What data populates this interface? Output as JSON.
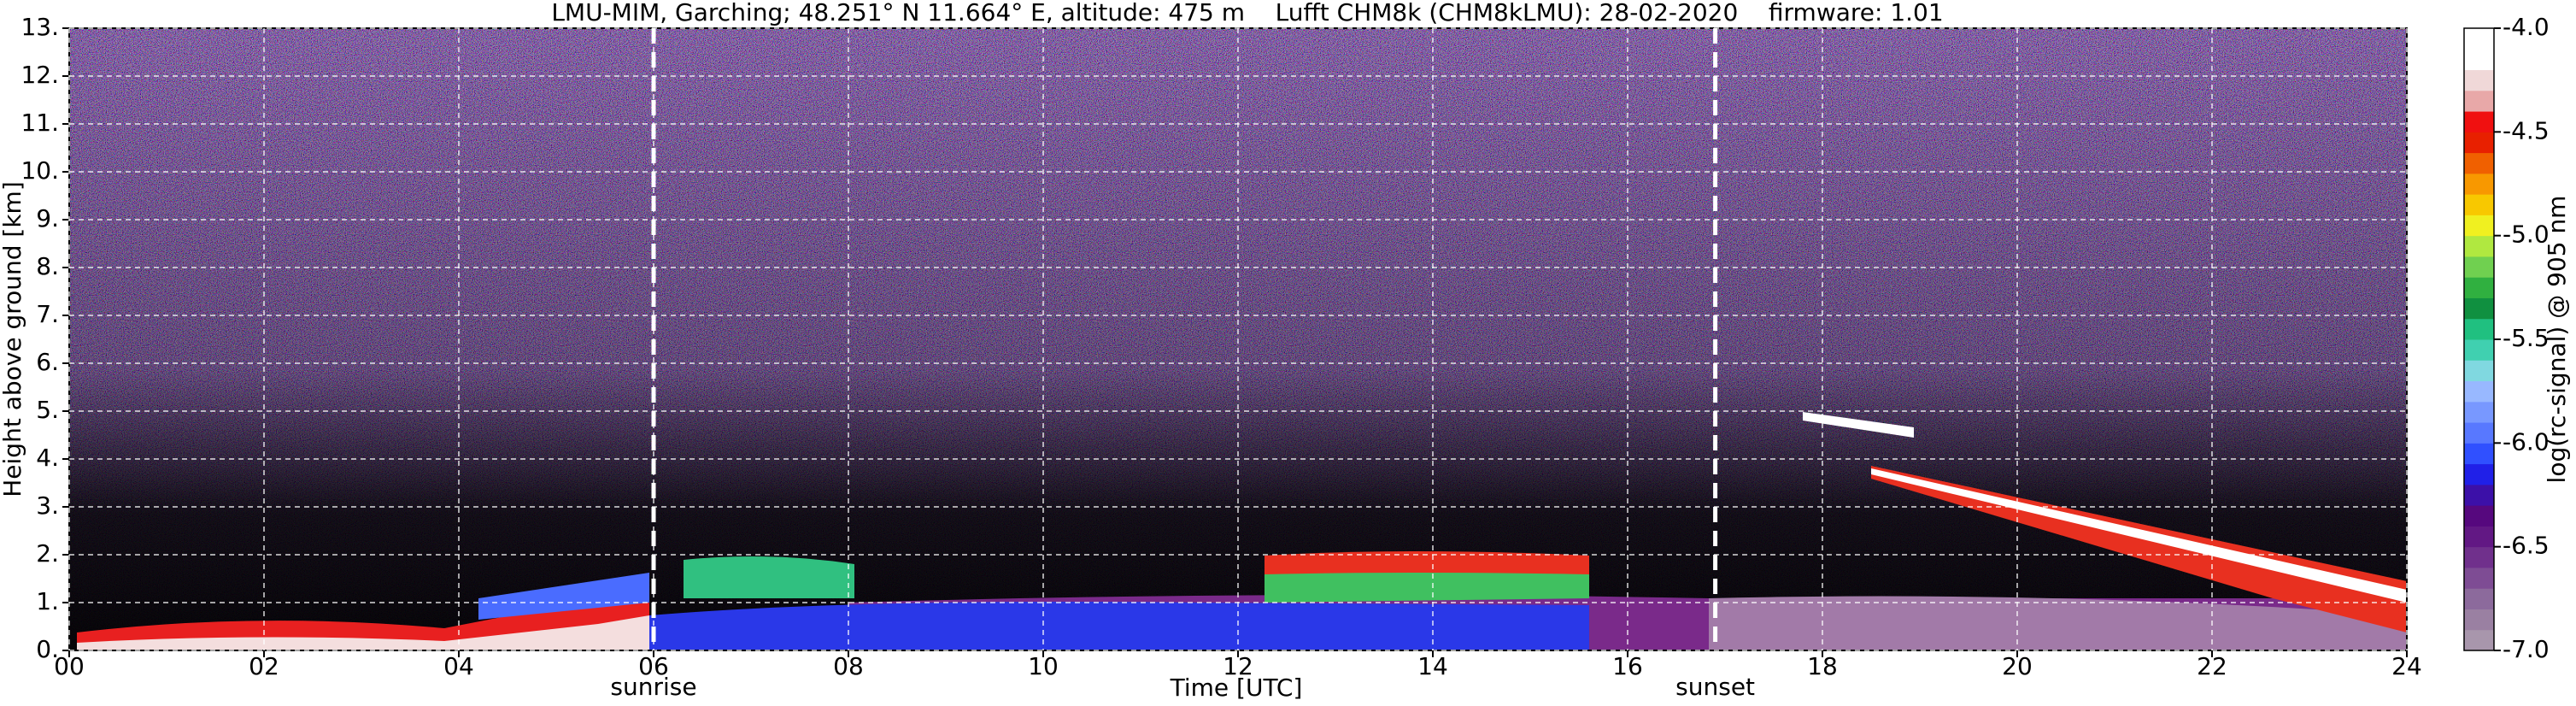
{
  "chart_data": {
    "type": "heatmap",
    "title": "LMU-MIM, Garching; 48.251° N 11.664° E, altitude: 475 m    Lufft CHM8k (CHM8kLMU): 28-02-2020    firmware: 1.01",
    "x_label": "Time [UTC]",
    "y_label": "Height above ground [km]",
    "xlim": [
      0,
      24
    ],
    "xticks": [
      {
        "value": 0,
        "label": "00"
      },
      {
        "value": 2,
        "label": "02"
      },
      {
        "value": 4,
        "label": "04"
      },
      {
        "value": 6,
        "label": "06"
      },
      {
        "value": 8,
        "label": "08"
      },
      {
        "value": 10,
        "label": "10"
      },
      {
        "value": 12,
        "label": "12"
      },
      {
        "value": 14,
        "label": "14"
      },
      {
        "value": 16,
        "label": "16"
      },
      {
        "value": 18,
        "label": "18"
      },
      {
        "value": 20,
        "label": "20"
      },
      {
        "value": 22,
        "label": "22"
      },
      {
        "value": 24,
        "label": "24"
      }
    ],
    "ylim": [
      0,
      13
    ],
    "yticks": [
      {
        "value": 0,
        "label": "0."
      },
      {
        "value": 1,
        "label": "1."
      },
      {
        "value": 2,
        "label": "2."
      },
      {
        "value": 3,
        "label": "3."
      },
      {
        "value": 4,
        "label": "4."
      },
      {
        "value": 5,
        "label": "5."
      },
      {
        "value": 6,
        "label": "6."
      },
      {
        "value": 7,
        "label": "7."
      },
      {
        "value": 8,
        "label": "8."
      },
      {
        "value": 9,
        "label": "9."
      },
      {
        "value": 10,
        "label": "10."
      },
      {
        "value": 11,
        "label": "11."
      },
      {
        "value": 12,
        "label": "12."
      },
      {
        "value": 13,
        "label": "13."
      }
    ],
    "grid": true,
    "annotations": [
      {
        "text": "sunrise",
        "x": 6
      },
      {
        "text": "sunset",
        "x": 16.9
      }
    ],
    "colorbar": {
      "label": "log(rc-signal) @ 905 nm",
      "clim": [
        -7,
        -4
      ],
      "ticks": [
        {
          "value": -7,
          "label": "-7.0"
        },
        {
          "value": -6.5,
          "label": "-6.5"
        },
        {
          "value": -6,
          "label": "-6.0"
        },
        {
          "value": -5.5,
          "label": "-5.5"
        },
        {
          "value": -5,
          "label": "-5.0"
        },
        {
          "value": -4.5,
          "label": "-4.5"
        },
        {
          "value": -4,
          "label": "-4.0"
        }
      ],
      "colors": [
        "#a896ac",
        "#9a80a2",
        "#8c6a9c",
        "#7e4c94",
        "#70308c",
        "#621884",
        "#56087e",
        "#3c10a8",
        "#2020e8",
        "#3050ff",
        "#5878ff",
        "#7898ff",
        "#98b8ff",
        "#80d8e0",
        "#40d0b0",
        "#20c080",
        "#109040",
        "#30b040",
        "#70d050",
        "#b0e840",
        "#f0f020",
        "#f8c800",
        "#f89800",
        "#f06000",
        "#e82000",
        "#f01010",
        "#e8a8a8",
        "#f0d8d8",
        "#ffffff",
        "#ffffff"
      ]
    }
  }
}
